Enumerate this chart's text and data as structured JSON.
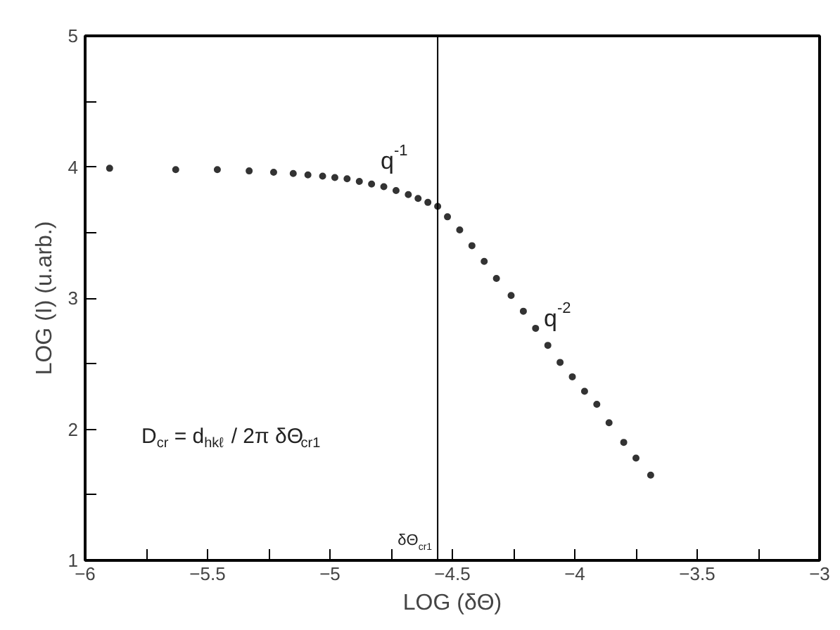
{
  "chart_data": {
    "type": "scatter",
    "xlabel": "LOG (δΘ)",
    "ylabel": "LOG (I) (u.arb.)",
    "marker": "circle",
    "grid": false,
    "x": [
      -5.9,
      -5.63,
      -5.46,
      -5.33,
      -5.23,
      -5.15,
      -5.09,
      -5.03,
      -4.98,
      -4.93,
      -4.88,
      -4.83,
      -4.78,
      -4.73,
      -4.68,
      -4.64,
      -4.6,
      -4.56,
      -4.52,
      -4.47,
      -4.42,
      -4.37,
      -4.32,
      -4.26,
      -4.21,
      -4.16,
      -4.11,
      -4.06,
      -4.01,
      -3.96,
      -3.91,
      -3.86,
      -3.8,
      -3.75,
      -3.69
    ],
    "series": [
      {
        "color": "#333333",
        "values": [
          3.99,
          3.98,
          3.98,
          3.97,
          3.96,
          3.95,
          3.94,
          3.93,
          3.92,
          3.91,
          3.89,
          3.87,
          3.85,
          3.82,
          3.79,
          3.76,
          3.73,
          3.7,
          3.62,
          3.52,
          3.4,
          3.28,
          3.15,
          3.02,
          2.9,
          2.77,
          2.64,
          2.51,
          2.4,
          2.29,
          2.19,
          2.05,
          1.9,
          1.78,
          1.65
        ]
      }
    ],
    "xlim": [
      -6,
      -3
    ],
    "ylim": [
      1,
      5
    ],
    "xticks": [
      -6,
      {
        "value": -5.75,
        "label": null
      },
      -5.5,
      {
        "value": -5.25,
        "label": null
      },
      -5,
      {
        "value": -4.75,
        "label": null
      },
      -4.5,
      {
        "value": -4.25,
        "label": null
      },
      -4,
      {
        "value": -3.75,
        "label": null
      },
      -3.5,
      {
        "value": -3.25,
        "label": null
      },
      -3
    ],
    "yticks": [
      1,
      {
        "value": 1.5,
        "label": null
      },
      2,
      {
        "value": 2.5,
        "label": null
      },
      3,
      {
        "value": 3.5,
        "label": null
      },
      4,
      {
        "value": 4.5,
        "label": null
      },
      5
    ],
    "ref_lines": [
      {
        "axis": "x",
        "value": -4.56,
        "label": "δΘ$_{cr1}$",
        "color": "#000000"
      }
    ],
    "annotations": [
      "q$^{-1}$",
      "q$^{-2}$",
      "D$_{cr}$ = d$_{hkℓ}$ / 2π δΘ$_{cr1}$"
    ]
  }
}
